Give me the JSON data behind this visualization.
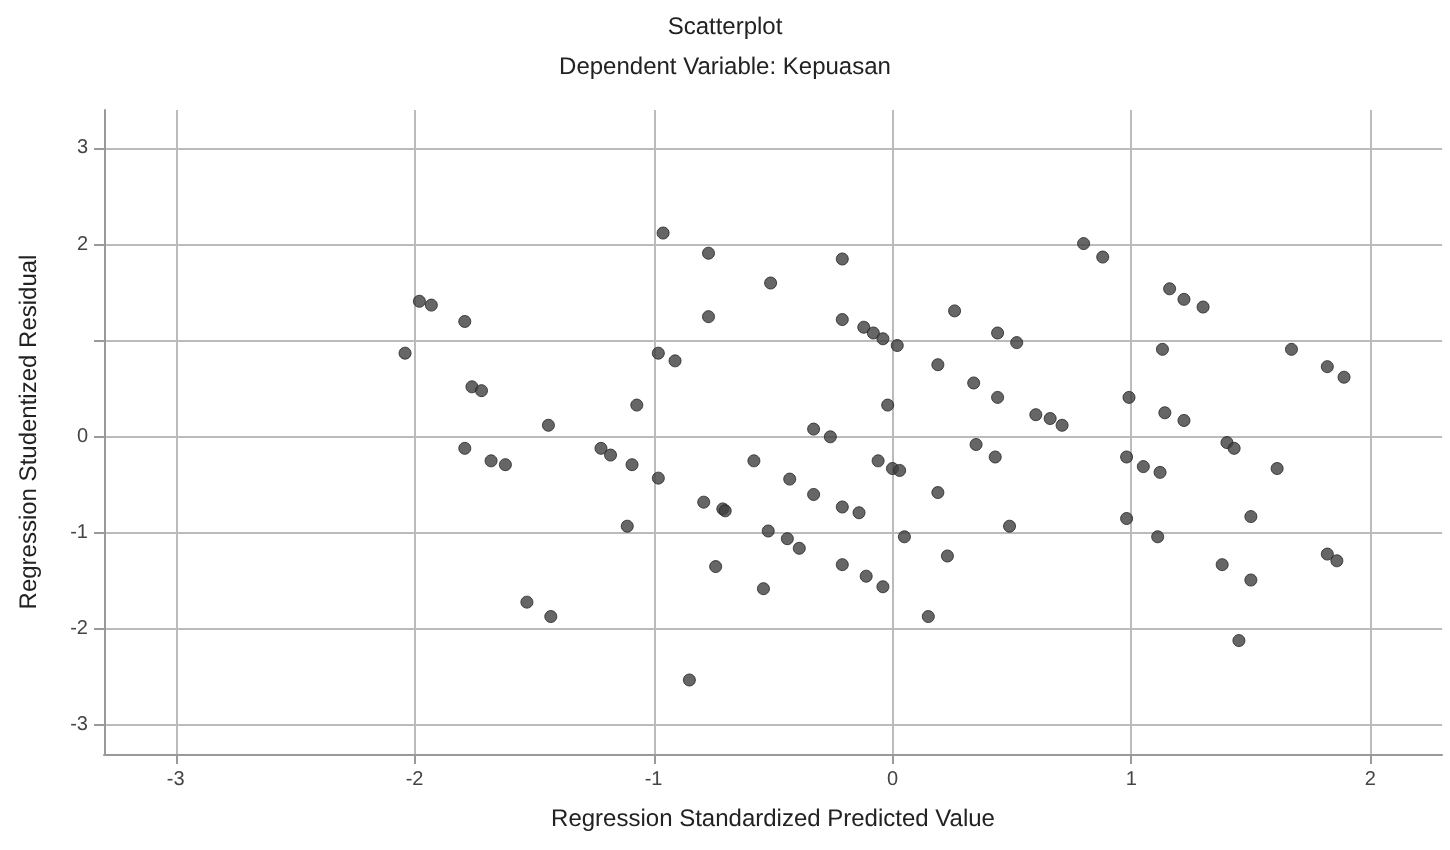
{
  "chart_data": {
    "type": "scatter",
    "title": "Scatterplot",
    "subtitle": "Dependent Variable: Kepuasan",
    "xlabel": "Regression Standardized Predicted Value",
    "ylabel": "Regression Studentized Residual",
    "xlim": [
      -3.3,
      2.3
    ],
    "xticks": [
      -3,
      -2,
      -1,
      0,
      1,
      2
    ],
    "ylim": [
      -3.3,
      3.4
    ],
    "yticks": [
      -3,
      -2,
      -1,
      0,
      {
        "value": 1,
        "label": null
      },
      2,
      3
    ],
    "grid": true,
    "marker": "circle",
    "series": [
      {
        "color": "#404040",
        "x": [
          -0.96,
          -0.77,
          -1.98,
          -1.93,
          -1.79,
          -0.77,
          -2.04,
          -0.98,
          -0.91,
          -1.76,
          -1.72,
          -1.07,
          -1.44,
          -1.79,
          -1.68,
          -1.62,
          -1.22,
          -1.18,
          -1.09,
          -0.98,
          -0.79,
          -0.71,
          -1.11,
          -0.74,
          -1.53,
          -1.43,
          -0.85,
          0.8,
          0.88,
          -0.21,
          -0.51,
          1.16,
          1.22,
          1.3,
          0.26,
          -0.21,
          -0.12,
          -0.08,
          -0.04,
          0.02,
          0.44,
          0.52,
          1.13,
          1.67,
          1.82,
          1.89,
          0.19,
          0.34,
          0.44,
          0.99,
          -0.02,
          0.6,
          0.66,
          0.71,
          1.14,
          1.22,
          -0.33,
          -0.26,
          1.4,
          1.43,
          -0.58,
          0.35,
          0.43,
          -0.06,
          0.0,
          0.03,
          0.98,
          1.05,
          1.12,
          1.61,
          -0.43,
          -0.33,
          0.19,
          -0.21,
          -0.14,
          -0.7,
          0.98,
          1.5,
          -0.52,
          -0.44,
          -0.39,
          0.49,
          0.05,
          1.11,
          0.23,
          1.82,
          1.86,
          -0.21,
          -0.11,
          -0.04,
          1.38,
          1.5,
          -0.54,
          0.15,
          1.45
        ],
        "values": [
          2.12,
          1.91,
          1.41,
          1.37,
          1.2,
          1.25,
          0.87,
          0.87,
          0.79,
          0.52,
          0.48,
          0.33,
          0.12,
          -0.12,
          -0.25,
          -0.29,
          -0.12,
          -0.19,
          -0.29,
          -0.43,
          -0.68,
          -0.75,
          -0.93,
          -1.35,
          -1.72,
          -1.87,
          -2.53,
          2.01,
          1.87,
          1.85,
          1.6,
          1.54,
          1.43,
          1.35,
          1.31,
          1.22,
          1.14,
          1.08,
          1.02,
          0.95,
          1.08,
          0.98,
          0.91,
          0.91,
          0.73,
          0.62,
          0.75,
          0.56,
          0.41,
          0.41,
          0.33,
          0.23,
          0.19,
          0.12,
          0.25,
          0.17,
          0.08,
          0.0,
          -0.06,
          -0.12,
          -0.25,
          -0.08,
          -0.21,
          -0.25,
          -0.33,
          -0.35,
          -0.21,
          -0.31,
          -0.37,
          -0.33,
          -0.44,
          -0.6,
          -0.58,
          -0.73,
          -0.79,
          -0.77,
          -0.85,
          -0.83,
          -0.98,
          -1.06,
          -1.16,
          -0.93,
          -1.04,
          -1.04,
          -1.24,
          -1.22,
          -1.29,
          -1.33,
          -1.45,
          -1.56,
          -1.33,
          -1.49,
          -1.58,
          -1.87,
          -2.12
        ]
      }
    ]
  }
}
